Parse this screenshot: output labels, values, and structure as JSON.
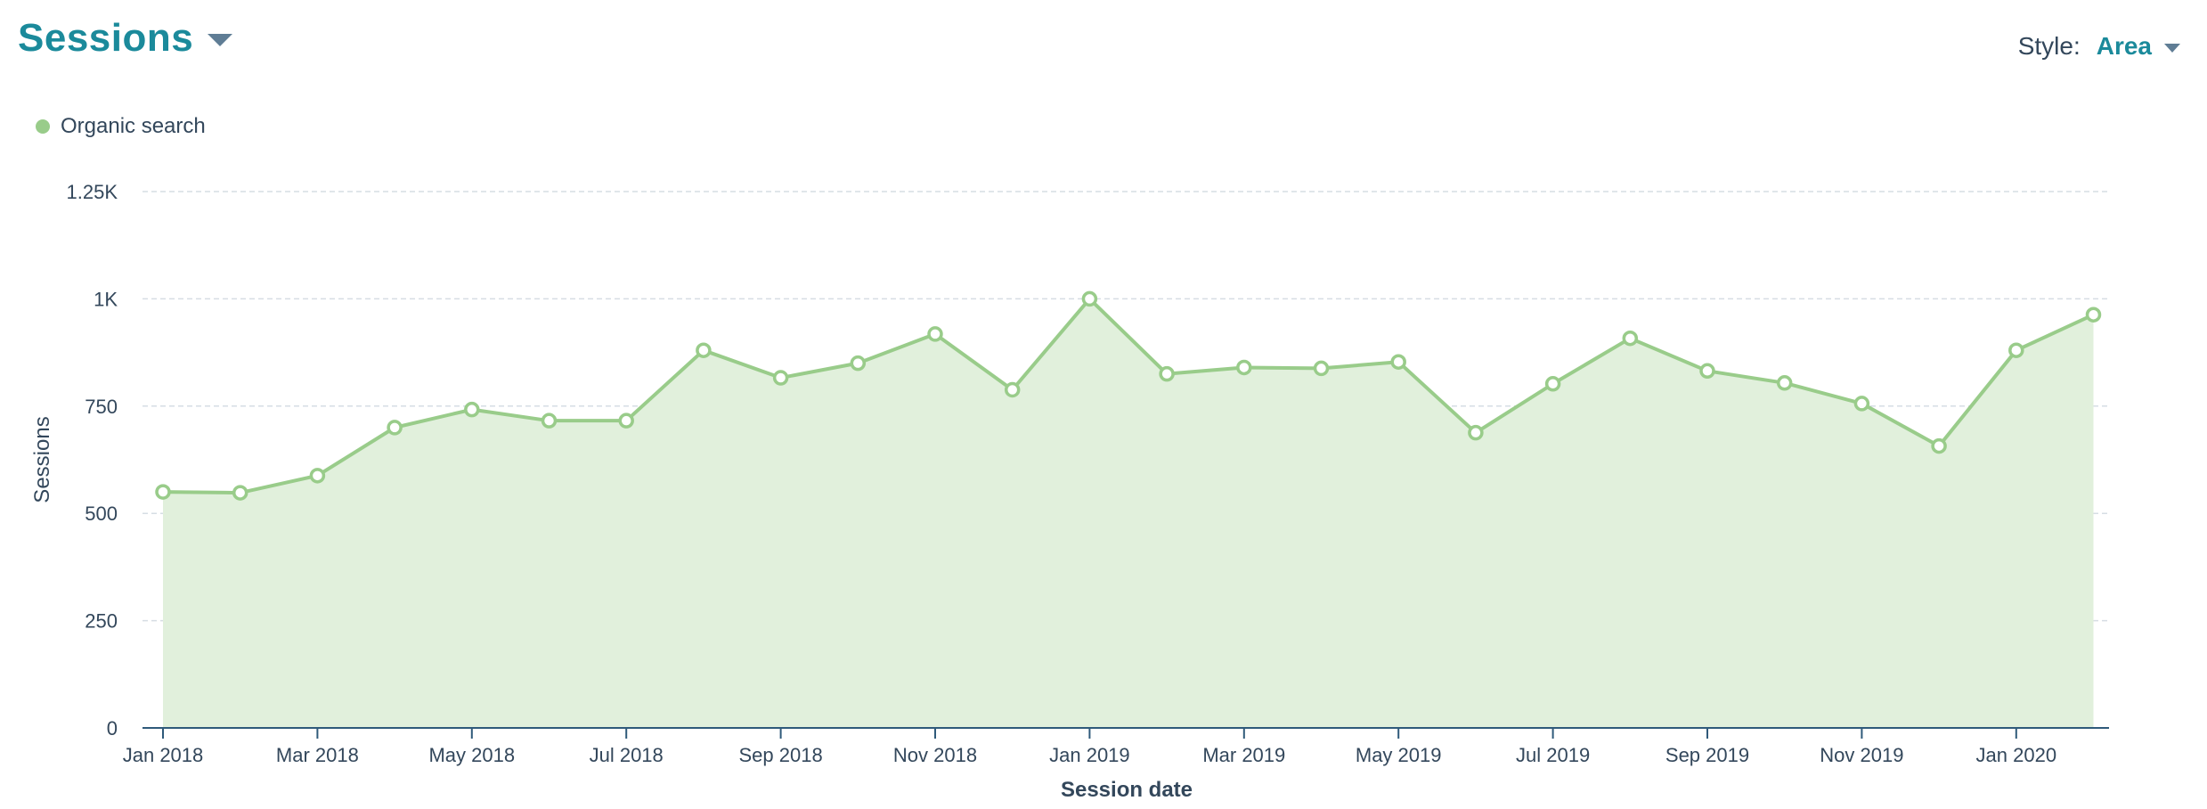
{
  "header": {
    "title": "Sessions",
    "style_label": "Style:",
    "style_value": "Area"
  },
  "colors": {
    "accent": "#1b8a9b",
    "series": "#99cc8a",
    "area_fill": "#e1f0dc",
    "grid": "#d6dde4",
    "axis": "#2f5a7a"
  },
  "chart_data": {
    "type": "area",
    "title": "Sessions",
    "xlabel": "Session date",
    "ylabel": "Sessions",
    "ylim": [
      0,
      1250
    ],
    "y_ticks": [
      {
        "value": 0,
        "label": "0"
      },
      {
        "value": 250,
        "label": "250"
      },
      {
        "value": 500,
        "label": "500"
      },
      {
        "value": 750,
        "label": "750"
      },
      {
        "value": 1000,
        "label": "1K"
      },
      {
        "value": 1250,
        "label": "1.25K"
      }
    ],
    "x": [
      "2018-01",
      "2018-02",
      "2018-03",
      "2018-04",
      "2018-05",
      "2018-06",
      "2018-07",
      "2018-08",
      "2018-09",
      "2018-10",
      "2018-11",
      "2018-12",
      "2019-01",
      "2019-02",
      "2019-03",
      "2019-04",
      "2019-05",
      "2019-06",
      "2019-07",
      "2019-08",
      "2019-09",
      "2019-10",
      "2019-11",
      "2019-12",
      "2020-01",
      "2020-02"
    ],
    "x_ticks": [
      {
        "index": 0,
        "label": "Jan 2018"
      },
      {
        "index": 2,
        "label": "Mar 2018"
      },
      {
        "index": 4,
        "label": "May 2018"
      },
      {
        "index": 6,
        "label": "Jul 2018"
      },
      {
        "index": 8,
        "label": "Sep 2018"
      },
      {
        "index": 10,
        "label": "Nov 2018"
      },
      {
        "index": 12,
        "label": "Jan 2019"
      },
      {
        "index": 14,
        "label": "Mar 2019"
      },
      {
        "index": 16,
        "label": "May 2019"
      },
      {
        "index": 18,
        "label": "Jul 2019"
      },
      {
        "index": 20,
        "label": "Sep 2019"
      },
      {
        "index": 22,
        "label": "Nov 2019"
      },
      {
        "index": 24,
        "label": "Jan 2020"
      }
    ],
    "series": [
      {
        "name": "Organic search",
        "values": [
          550,
          548,
          588,
          700,
          742,
          716,
          716,
          880,
          816,
          850,
          918,
          788,
          1000,
          825,
          840,
          838,
          853,
          688,
          802,
          908,
          832,
          804,
          756,
          657,
          880,
          963
        ]
      }
    ],
    "grid": true,
    "legend": "top-left"
  }
}
